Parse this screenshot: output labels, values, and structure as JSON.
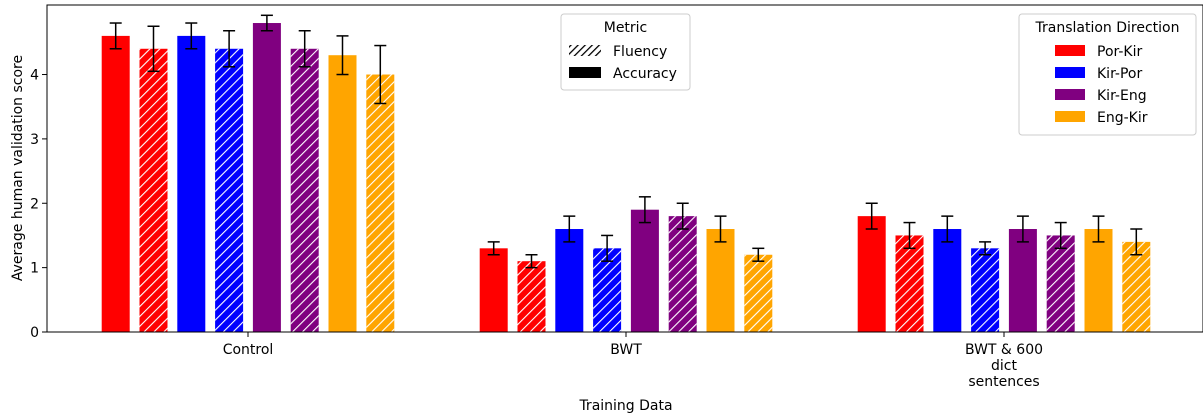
{
  "chart_data": {
    "type": "bar",
    "title": "",
    "xlabel": "Training Data",
    "ylabel": "Average human validation score",
    "ylim": [
      0,
      5
    ],
    "yticks": [
      0,
      1,
      2,
      3,
      4
    ],
    "grid": false,
    "categories": [
      "Control",
      "BWT",
      "BWT & 600\ndict\nsentences"
    ],
    "series": [
      {
        "name": "Por-Kir",
        "metric": "Accuracy",
        "color": "#ff0000",
        "hatched": false,
        "values": [
          4.6,
          1.3,
          1.8
        ],
        "errors": [
          0.2,
          0.1,
          0.2
        ]
      },
      {
        "name": "Por-Kir",
        "metric": "Fluency",
        "color": "#ff0000",
        "hatched": true,
        "values": [
          4.4,
          1.1,
          1.5
        ],
        "errors": [
          0.35,
          0.1,
          0.2
        ]
      },
      {
        "name": "Kir-Por",
        "metric": "Accuracy",
        "color": "#0000ff",
        "hatched": false,
        "values": [
          4.6,
          1.6,
          1.6
        ],
        "errors": [
          0.2,
          0.2,
          0.2
        ]
      },
      {
        "name": "Kir-Por",
        "metric": "Fluency",
        "color": "#0000ff",
        "hatched": true,
        "values": [
          4.4,
          1.3,
          1.3
        ],
        "errors": [
          0.28,
          0.2,
          0.1
        ]
      },
      {
        "name": "Kir-Eng",
        "metric": "Accuracy",
        "color": "#800080",
        "hatched": false,
        "values": [
          4.8,
          1.9,
          1.6
        ],
        "errors": [
          0.12,
          0.2,
          0.2
        ]
      },
      {
        "name": "Kir-Eng",
        "metric": "Fluency",
        "color": "#800080",
        "hatched": true,
        "values": [
          4.4,
          1.8,
          1.5
        ],
        "errors": [
          0.28,
          0.2,
          0.2
        ]
      },
      {
        "name": "Eng-Kir",
        "metric": "Accuracy",
        "color": "#ffa500",
        "hatched": false,
        "values": [
          4.3,
          1.6,
          1.6
        ],
        "errors": [
          0.3,
          0.2,
          0.2
        ]
      },
      {
        "name": "Eng-Kir",
        "metric": "Fluency",
        "color": "#ffa500",
        "hatched": true,
        "values": [
          4.0,
          1.2,
          1.4
        ],
        "errors": [
          0.45,
          0.1,
          0.2
        ]
      }
    ],
    "legend_metric": {
      "title": "Metric",
      "placement": "top-center",
      "entries": [
        {
          "label": "Fluency",
          "hatched": true
        },
        {
          "label": "Accuracy",
          "hatched": false
        }
      ]
    },
    "legend_direction": {
      "title": "Translation Direction",
      "placement": "top-right",
      "entries": [
        {
          "label": "Por-Kir",
          "color": "#ff0000"
        },
        {
          "label": "Kir-Por",
          "color": "#0000ff"
        },
        {
          "label": "Kir-Eng",
          "color": "#800080"
        },
        {
          "label": "Eng-Kir",
          "color": "#ffa500"
        }
      ]
    }
  }
}
